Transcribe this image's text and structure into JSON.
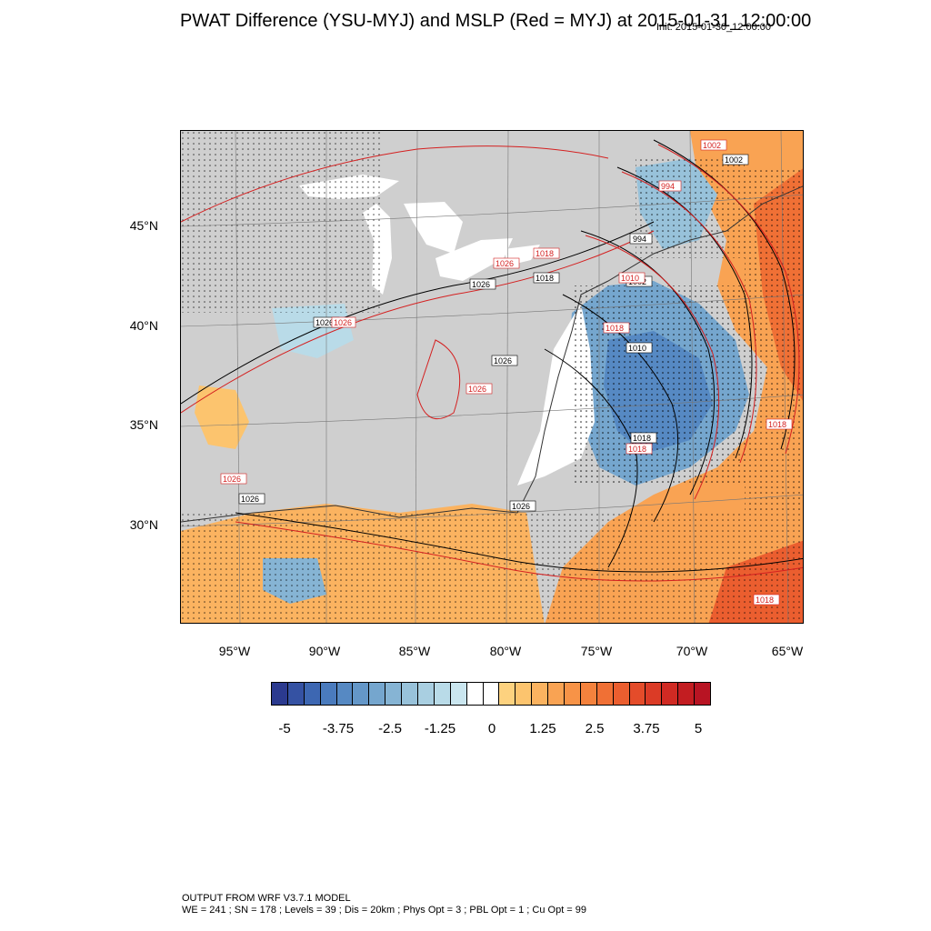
{
  "title": "PWAT Difference (YSU-MYJ) and MSLP (Red = MYJ) at 2015-01-31_12:00:00",
  "init_time": "Init: 2015-01-30_12:00:00",
  "map": {
    "lat_labels": [
      "45°N",
      "40°N",
      "35°N",
      "30°N"
    ],
    "lon_labels": [
      "95°W",
      "90°W",
      "85°W",
      "80°W",
      "75°W",
      "70°W",
      "65°W"
    ],
    "contour_labels_black": [
      "1002",
      "994",
      "1002",
      "1018",
      "1026",
      "1026",
      "1010",
      "1018",
      "1026",
      "1026",
      "1026"
    ],
    "contour_labels_red": [
      "1002",
      "994",
      "1018",
      "1010",
      "1018",
      "1026",
      "1026",
      "1026",
      "1018",
      "1018",
      "1026",
      "1018"
    ],
    "colors": {
      "land_masked": "#cfcfcf",
      "water": "#ffffff",
      "mslp_ysu": "#000000",
      "mslp_myj": "#d42020"
    }
  },
  "colorbar": {
    "labels": [
      "-5",
      "-3.75",
      "-2.5",
      "-1.25",
      "0",
      "1.25",
      "2.5",
      "3.75",
      "5"
    ],
    "colors": [
      "#2b3a8f",
      "#3552a3",
      "#3d67b2",
      "#4a7bbd",
      "#5689c3",
      "#6497c8",
      "#75a6ce",
      "#86b4d4",
      "#98c2da",
      "#a9cfe1",
      "#b9dbe8",
      "#cae6ef",
      "#ffffff",
      "#ffffff",
      "#fdd27f",
      "#fcc46e",
      "#fbb360",
      "#f9a353",
      "#f79347",
      "#f4823d",
      "#f07035",
      "#eb5e2f",
      "#e44c2a",
      "#db3b26",
      "#d02a23",
      "#c31d21",
      "#b81423"
    ]
  },
  "footer": {
    "line1": "OUTPUT FROM WRF V3.7.1 MODEL",
    "line2": "WE = 241 ; SN = 178 ; Levels = 39 ; Dis = 20km ; Phys Opt = 3 ; PBL Opt = 1 ; Cu Opt = 99"
  }
}
